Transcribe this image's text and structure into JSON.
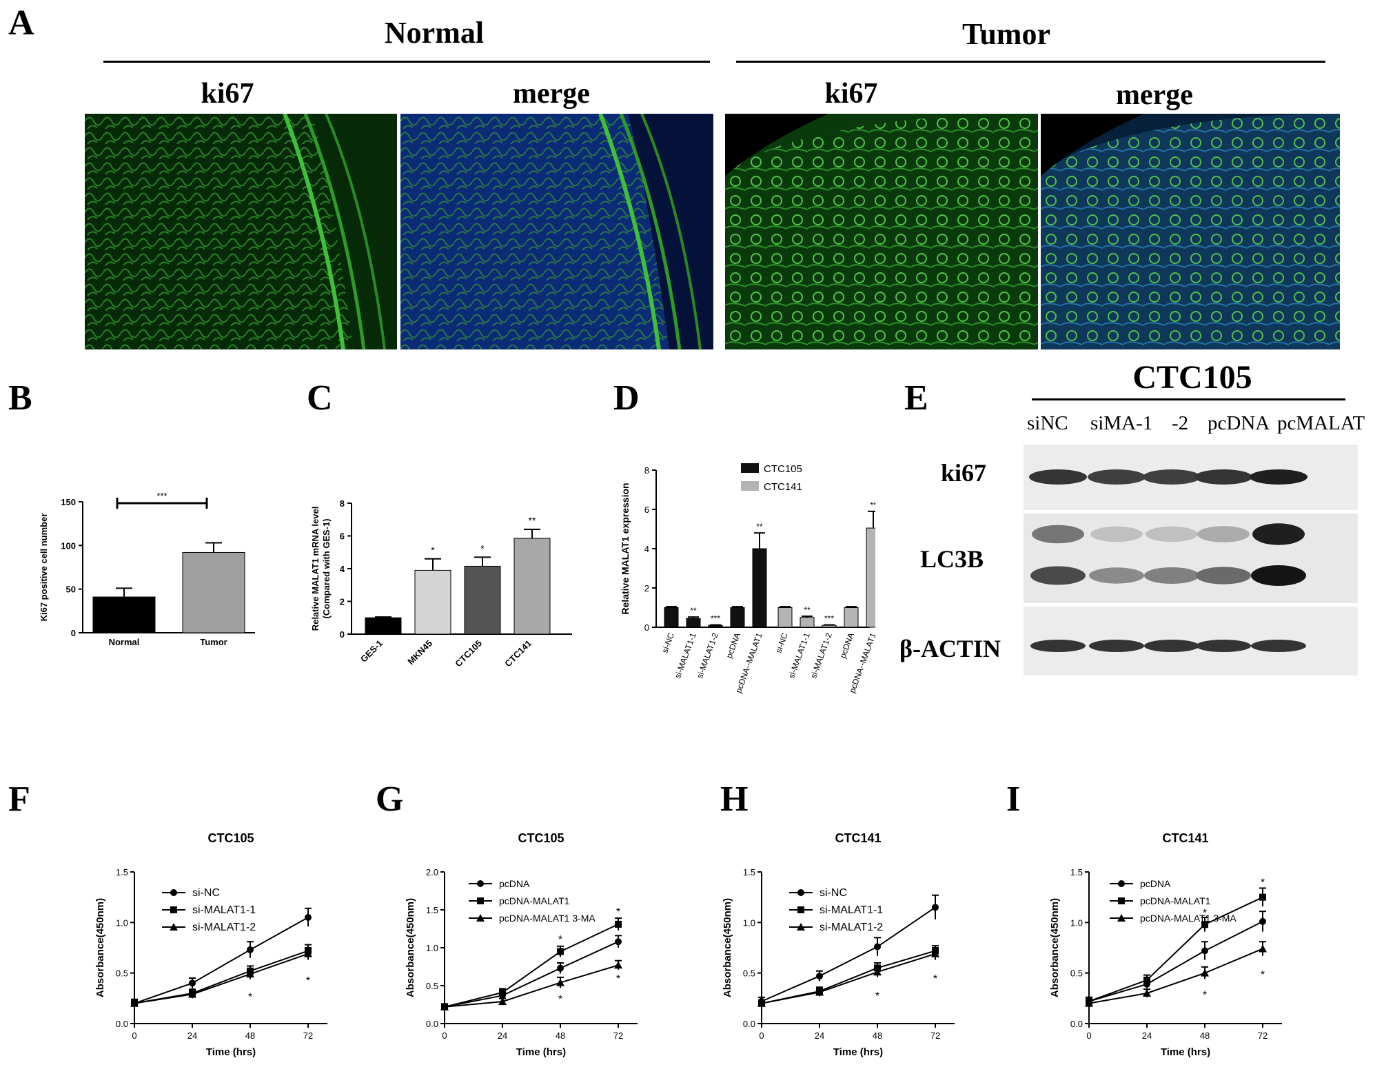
{
  "panel_letters": [
    "A",
    "B",
    "C",
    "D",
    "E",
    "F",
    "G",
    "H",
    "I"
  ],
  "panelA": {
    "normal_label": "Normal",
    "tumor_label": "Tumor",
    "image_labels": [
      "ki67",
      "merge",
      "ki67",
      "merge"
    ]
  },
  "panelE": {
    "title": "CTC105",
    "lanes": [
      "siNC",
      "siMA-1",
      "-2",
      "pcDNA",
      "pcMALAT"
    ],
    "rows": [
      "ki67",
      "LC3B",
      "β-ACTIN"
    ],
    "band_intensity": {
      "ki67": [
        0.85,
        0.8,
        0.8,
        0.85,
        0.95
      ],
      "LC3B_upper": [
        0.55,
        0.2,
        0.2,
        0.3,
        0.95
      ],
      "LC3B_lower": [
        0.75,
        0.45,
        0.5,
        0.6,
        1.0
      ],
      "beta_actin": [
        0.85,
        0.85,
        0.85,
        0.85,
        0.85
      ]
    }
  },
  "chart_data": [
    {
      "panel": "B",
      "type": "bar",
      "ylabel": "Ki67 positive cell number",
      "ylim": [
        0,
        150
      ],
      "yticks": [
        "0",
        "50",
        "100",
        "150"
      ],
      "categories": [
        "Normal",
        "Tumor"
      ],
      "values": [
        41,
        92
      ],
      "errors": [
        10,
        11
      ],
      "colors": [
        "#000000",
        "#a0a0a0"
      ],
      "significance": "***"
    },
    {
      "panel": "C",
      "type": "bar",
      "ylabel": "Relative MALAT1 mRNA level",
      "ylabel2": "(Compared with GES-1)",
      "ylim": [
        0,
        8
      ],
      "yticks": [
        "0",
        "2",
        "4",
        "6",
        "8"
      ],
      "categories": [
        "GES-1",
        "MKN45",
        "CTC105",
        "CTC141"
      ],
      "values": [
        1.0,
        3.9,
        4.15,
        5.85
      ],
      "errors": [
        0.05,
        0.7,
        0.55,
        0.55
      ],
      "colors": [
        "#000000",
        "#d4d4d4",
        "#555555",
        "#a8a8a8"
      ],
      "stars": [
        "",
        "*",
        "*",
        "**"
      ]
    },
    {
      "panel": "D",
      "type": "bar",
      "ylabel": "Relative MALAT1  expression",
      "ylim": [
        0,
        8
      ],
      "yticks": [
        "0",
        "2",
        "4",
        "6",
        "8"
      ],
      "legend": [
        "CTC105",
        "CTC141"
      ],
      "legend_position": "top",
      "categories": [
        "si-NC",
        "si-MALAT1-1",
        "si-MALAT1-2",
        "pcDNA",
        "pcDNA--MALAT1"
      ],
      "series": [
        {
          "name": "CTC105",
          "color": "#111111",
          "values": [
            1.0,
            0.45,
            0.1,
            1.0,
            4.0
          ],
          "errors": [
            0.05,
            0.07,
            0.02,
            0.05,
            0.8
          ],
          "stars": [
            "",
            "**",
            "***",
            "",
            "**"
          ]
        },
        {
          "name": "CTC141",
          "color": "#b4b4b4",
          "values": [
            1.0,
            0.5,
            0.1,
            1.0,
            5.05
          ],
          "errors": [
            0.05,
            0.06,
            0.02,
            0.05,
            0.85
          ],
          "stars": [
            "",
            "**",
            "***",
            "",
            "**"
          ]
        }
      ]
    },
    {
      "panel": "F",
      "type": "line",
      "title": "CTC105",
      "xlabel": "Time (hrs)",
      "ylabel": "Absorbance(450nm)",
      "x": [
        0,
        24,
        48,
        72
      ],
      "ylim": [
        0,
        1.5
      ],
      "yticks": [
        "0.0",
        "0.5",
        "1.0",
        "1.5"
      ],
      "series": [
        {
          "name": "si-NC",
          "marker": "circle",
          "values": [
            0.2,
            0.4,
            0.73,
            1.05
          ],
          "errors": [
            0.04,
            0.05,
            0.08,
            0.09
          ]
        },
        {
          "name": "si-MALAT1-1",
          "marker": "square",
          "values": [
            0.2,
            0.3,
            0.52,
            0.72
          ],
          "errors": [
            0.03,
            0.04,
            0.05,
            0.06
          ]
        },
        {
          "name": "si-MALAT1-2",
          "marker": "triangle",
          "values": [
            0.2,
            0.29,
            0.49,
            0.69
          ],
          "errors": [
            0.03,
            0.04,
            0.05,
            0.06
          ]
        }
      ],
      "stars": [
        {
          "x": 48,
          "y": 0.27,
          "text": "*"
        },
        {
          "x": 72,
          "y": 0.43,
          "text": "*"
        }
      ]
    },
    {
      "panel": "G",
      "type": "line",
      "title": "CTC105",
      "xlabel": "Time (hrs)",
      "ylabel": "Absorbance(450nm)",
      "x": [
        0,
        24,
        48,
        72
      ],
      "ylim": [
        0,
        2.0
      ],
      "yticks": [
        "0.0",
        "0.5",
        "1.0",
        "1.5",
        "2.0"
      ],
      "series": [
        {
          "name": "pcDNA",
          "marker": "circle",
          "values": [
            0.22,
            0.37,
            0.73,
            1.08
          ],
          "errors": [
            0.04,
            0.05,
            0.07,
            0.08
          ]
        },
        {
          "name": "pcDNA-MALAT1",
          "marker": "square",
          "values": [
            0.22,
            0.41,
            0.95,
            1.31
          ],
          "errors": [
            0.04,
            0.05,
            0.07,
            0.08
          ]
        },
        {
          "name": "pcDNA-MALAT1   3-MA",
          "marker": "triangle",
          "values": [
            0.22,
            0.29,
            0.54,
            0.77
          ],
          "errors": [
            0.04,
            0.04,
            0.07,
            0.06
          ]
        }
      ],
      "stars": [
        {
          "x": 48,
          "y": 1.12,
          "text": "*"
        },
        {
          "x": 48,
          "y": 0.33,
          "text": "*"
        },
        {
          "x": 72,
          "y": 1.48,
          "text": "*"
        },
        {
          "x": 72,
          "y": 0.6,
          "text": "*"
        }
      ]
    },
    {
      "panel": "H",
      "type": "line",
      "title": "CTC141",
      "xlabel": "Time (hrs)",
      "ylabel": "Absorbance(450nm)",
      "x": [
        0,
        24,
        48,
        72
      ],
      "ylim": [
        0,
        1.5
      ],
      "yticks": [
        "0.0",
        "0.5",
        "1.0",
        "1.5"
      ],
      "series": [
        {
          "name": "si-NC",
          "marker": "circle",
          "values": [
            0.22,
            0.47,
            0.76,
            1.15
          ],
          "errors": [
            0.04,
            0.05,
            0.09,
            0.12
          ]
        },
        {
          "name": "si-MALAT1-1",
          "marker": "square",
          "values": [
            0.2,
            0.32,
            0.55,
            0.72
          ],
          "errors": [
            0.03,
            0.04,
            0.05,
            0.05
          ]
        },
        {
          "name": "si-MALAT1-2",
          "marker": "triangle",
          "values": [
            0.2,
            0.31,
            0.51,
            0.69
          ],
          "errors": [
            0.03,
            0.04,
            0.05,
            0.06
          ]
        }
      ],
      "stars": [
        {
          "x": 48,
          "y": 0.28,
          "text": "*"
        },
        {
          "x": 72,
          "y": 0.45,
          "text": "*"
        }
      ]
    },
    {
      "panel": "I",
      "type": "line",
      "title": "CTC141",
      "xlabel": "Time (hrs)",
      "ylabel": "Absorbance(450nm)",
      "x": [
        0,
        24,
        48,
        72
      ],
      "ylim": [
        0,
        1.5
      ],
      "yticks": [
        "0.0",
        "0.5",
        "1.0",
        "1.5"
      ],
      "series": [
        {
          "name": "pcDNA",
          "marker": "circle",
          "values": [
            0.22,
            0.39,
            0.72,
            1.01
          ],
          "errors": [
            0.04,
            0.04,
            0.09,
            0.1
          ]
        },
        {
          "name": "pcDNA-MALAT1",
          "marker": "square",
          "values": [
            0.22,
            0.43,
            0.98,
            1.25
          ],
          "errors": [
            0.04,
            0.05,
            0.07,
            0.09
          ]
        },
        {
          "name": "pcDNA-MALAT1   3-MA",
          "marker": "triangle",
          "values": [
            0.2,
            0.3,
            0.5,
            0.74
          ],
          "errors": [
            0.03,
            0.04,
            0.06,
            0.07
          ]
        }
      ],
      "stars": [
        {
          "x": 48,
          "y": 1.1,
          "text": "*"
        },
        {
          "x": 48,
          "y": 0.29,
          "text": "*"
        },
        {
          "x": 72,
          "y": 1.4,
          "text": "*"
        },
        {
          "x": 72,
          "y": 0.49,
          "text": "*"
        }
      ]
    }
  ]
}
